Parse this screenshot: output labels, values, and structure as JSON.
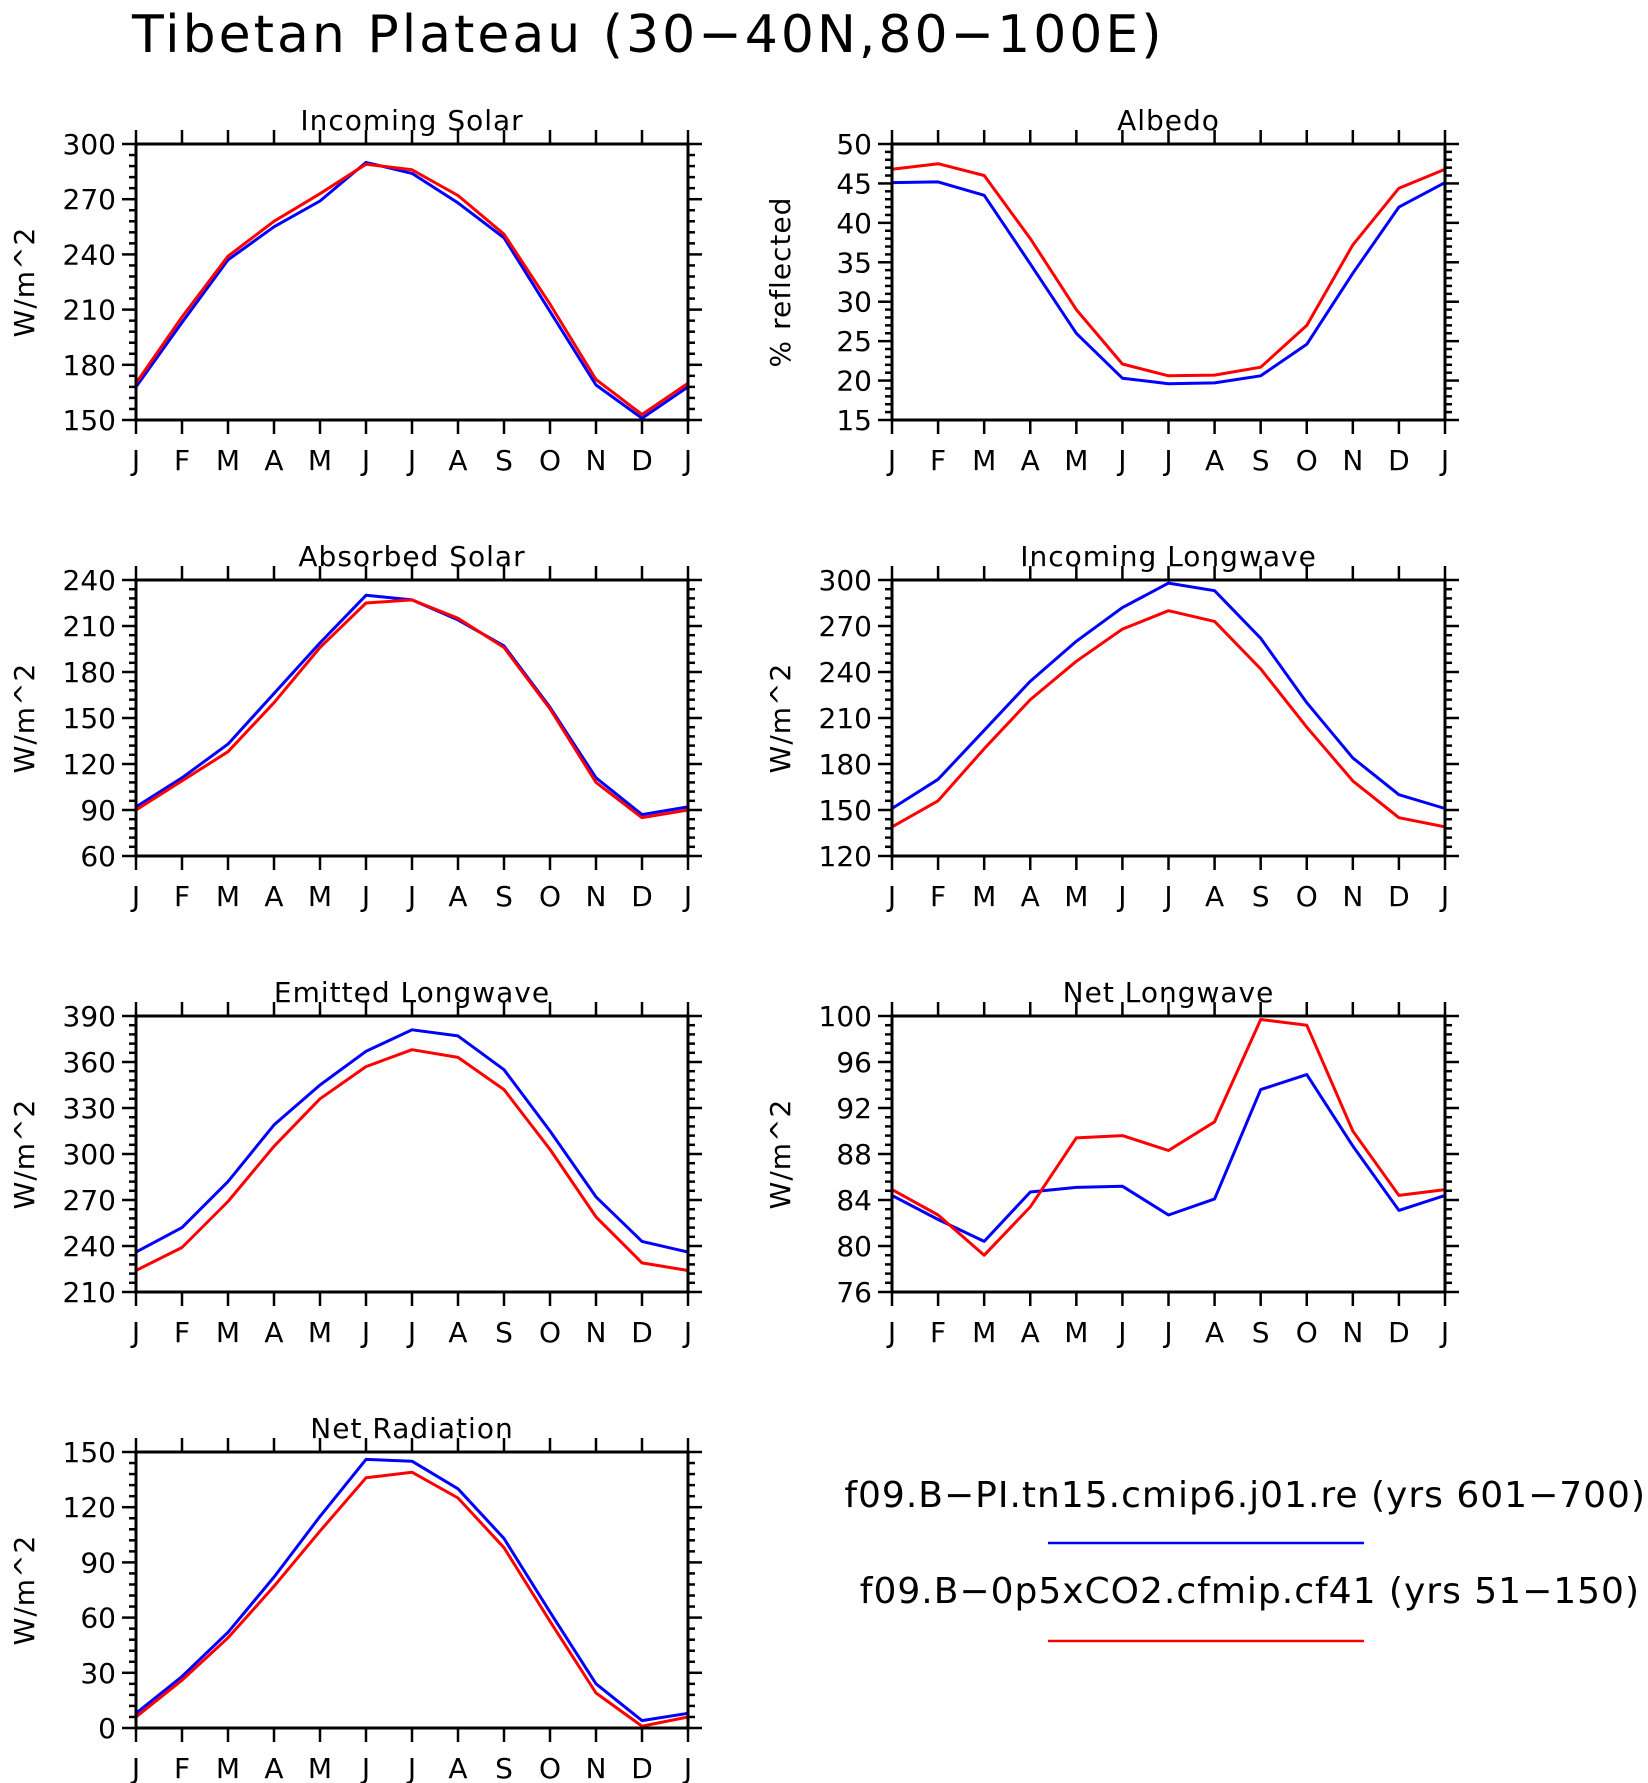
{
  "title": "Tibetan Plateau (30−40N,80−100E)",
  "colors": {
    "series_1": "#0000ff",
    "series_2": "#ff0000"
  },
  "legend": [
    {
      "label": "f09.B−PI.tn15.cmip6.j01.re (yrs 601−700)",
      "color": "#0000ff"
    },
    {
      "label": "f09.B−0p5xCO2.cfmip.cf41 (yrs 51−150)",
      "color": "#ff0000"
    }
  ],
  "chart_data": [
    {
      "type": "line",
      "title": "Incoming Solar",
      "ylabel": "W/m^2",
      "x": [
        "J",
        "F",
        "M",
        "A",
        "M",
        "J",
        "J",
        "A",
        "S",
        "O",
        "N",
        "D",
        "J"
      ],
      "ylim": [
        150,
        300
      ],
      "yticks": [
        150,
        180,
        210,
        240,
        270,
        300
      ],
      "series": [
        {
          "values": [
            168,
            203,
            237,
            255,
            269,
            290,
            284,
            268,
            249,
            209,
            169,
            151,
            168
          ]
        },
        {
          "values": [
            170,
            206,
            239,
            258,
            273,
            289,
            286,
            272,
            251,
            213,
            172,
            153,
            170
          ]
        }
      ]
    },
    {
      "type": "line",
      "title": "Albedo",
      "ylabel": "% reflected",
      "x": [
        "J",
        "F",
        "M",
        "A",
        "M",
        "J",
        "J",
        "A",
        "S",
        "O",
        "N",
        "D",
        "J"
      ],
      "ylim": [
        15,
        50
      ],
      "yticks": [
        15,
        20,
        25,
        30,
        35,
        40,
        45,
        50
      ],
      "series": [
        {
          "values": [
            45.1,
            45.2,
            43.5,
            34.8,
            26.0,
            20.3,
            19.6,
            19.7,
            20.6,
            24.6,
            33.6,
            42.0,
            45.1
          ]
        },
        {
          "values": [
            46.8,
            47.5,
            46.0,
            38.0,
            29.0,
            22.1,
            20.6,
            20.7,
            21.7,
            27.0,
            37.2,
            44.4,
            46.8
          ]
        }
      ]
    },
    {
      "type": "line",
      "title": "Absorbed Solar",
      "ylabel": "W/m^2",
      "x": [
        "J",
        "F",
        "M",
        "A",
        "M",
        "J",
        "J",
        "A",
        "S",
        "O",
        "N",
        "D",
        "J"
      ],
      "ylim": [
        60,
        240
      ],
      "yticks": [
        60,
        90,
        120,
        150,
        180,
        210,
        240
      ],
      "series": [
        {
          "values": [
            92,
            111,
            133,
            166,
            199,
            230,
            227,
            214,
            197,
            157,
            111,
            87,
            92
          ]
        },
        {
          "values": [
            90,
            109,
            128,
            160,
            196,
            225,
            227,
            215,
            196,
            156,
            108,
            85,
            90
          ]
        }
      ]
    },
    {
      "type": "line",
      "title": "Incoming Longwave",
      "ylabel": "W/m^2",
      "x": [
        "J",
        "F",
        "M",
        "A",
        "M",
        "J",
        "J",
        "A",
        "S",
        "O",
        "N",
        "D",
        "J"
      ],
      "ylim": [
        120,
        300
      ],
      "yticks": [
        120,
        150,
        180,
        210,
        240,
        270,
        300
      ],
      "series": [
        {
          "values": [
            151,
            170,
            202,
            234,
            260,
            282,
            298,
            293,
            262,
            220,
            184,
            160,
            151
          ]
        },
        {
          "values": [
            139,
            156,
            190,
            222,
            247,
            268,
            280,
            273,
            242,
            204,
            169,
            145,
            139
          ]
        }
      ]
    },
    {
      "type": "line",
      "title": "Emitted Longwave",
      "ylabel": "W/m^2",
      "x": [
        "J",
        "F",
        "M",
        "A",
        "M",
        "J",
        "J",
        "A",
        "S",
        "O",
        "N",
        "D",
        "J"
      ],
      "ylim": [
        210,
        390
      ],
      "yticks": [
        210,
        240,
        270,
        300,
        330,
        360,
        390
      ],
      "series": [
        {
          "values": [
            236,
            252,
            282,
            319,
            345,
            367,
            381,
            377,
            355,
            315,
            272,
            243,
            236
          ]
        },
        {
          "values": [
            224,
            239,
            269,
            305,
            336,
            357,
            368,
            363,
            342,
            303,
            259,
            229,
            224
          ]
        }
      ]
    },
    {
      "type": "line",
      "title": "Net Longwave",
      "ylabel": "W/m^2",
      "x": [
        "J",
        "F",
        "M",
        "A",
        "M",
        "J",
        "J",
        "A",
        "S",
        "O",
        "N",
        "D",
        "J"
      ],
      "ylim": [
        76,
        100
      ],
      "yticks": [
        76,
        80,
        84,
        88,
        92,
        96,
        100
      ],
      "series": [
        {
          "values": [
            84.4,
            82.3,
            80.4,
            84.7,
            85.1,
            85.2,
            82.7,
            84.1,
            93.6,
            94.9,
            88.7,
            83.1,
            84.4
          ]
        },
        {
          "values": [
            84.9,
            82.7,
            79.2,
            83.4,
            89.4,
            89.6,
            88.3,
            90.8,
            99.7,
            99.2,
            90.0,
            84.4,
            84.9
          ]
        }
      ]
    },
    {
      "type": "line",
      "title": "Net Radiation",
      "ylabel": "W/m^2",
      "x": [
        "J",
        "F",
        "M",
        "A",
        "M",
        "J",
        "J",
        "A",
        "S",
        "O",
        "N",
        "D",
        "J"
      ],
      "ylim": [
        0,
        150
      ],
      "yticks": [
        0,
        30,
        60,
        90,
        120,
        150
      ],
      "series": [
        {
          "values": [
            8,
            28,
            52,
            82,
            115,
            146,
            145,
            130,
            103,
            63,
            24,
            4,
            8
          ]
        },
        {
          "values": [
            6,
            26,
            49,
            77,
            107,
            136,
            139,
            125,
            98,
            58,
            19,
            1,
            6
          ]
        }
      ]
    }
  ]
}
